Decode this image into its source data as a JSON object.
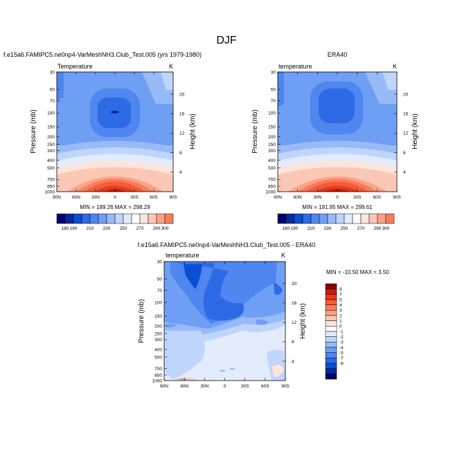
{
  "page_title": "DJF",
  "colors": {
    "blues": [
      "#03006d",
      "#022b9c",
      "#0a4fd3",
      "#2e6ae6",
      "#4f86ef",
      "#6f9ff4",
      "#98bbf8",
      "#bfd5fb",
      "#e2ecfd"
    ],
    "neutral": "#ffffff",
    "reds": [
      "#fde5de",
      "#fcc8b6",
      "#fba286",
      "#f97d5a",
      "#f65a36",
      "#e8391a",
      "#c81b0e",
      "#8d0000"
    ]
  },
  "chart_data": [
    {
      "type": "heatmap",
      "subtype": "latitude-pressure contour",
      "title": "f.e15a6.FAMIPC5.ne0np4-VarMeshNH3.Club_Test.005 (yrs 1979-1980)",
      "left_label": "Temperature",
      "units": "K",
      "stats": "MIN = 189.26   MAX = 298.29",
      "min": 189.26,
      "max": 298.29,
      "xlabel": "",
      "ylabel": "Pressure (mb)",
      "ylabel_right": "Height (km)",
      "x_ticks": [
        "90N",
        "60N",
        "30N",
        "0",
        "30S",
        "60S",
        "90S"
      ],
      "x_values": [
        90,
        60,
        30,
        0,
        -30,
        -60,
        -90
      ],
      "y_ticks": [
        "30",
        "50",
        "70",
        "100",
        "150",
        "200",
        "250",
        "300",
        "400",
        "500",
        "700",
        "850",
        "1000"
      ],
      "y_values": [
        30,
        50,
        70,
        100,
        150,
        200,
        250,
        300,
        400,
        500,
        700,
        850,
        1000
      ],
      "height_ticks": [
        "20",
        "16",
        "12",
        "8",
        "4"
      ],
      "height_values": [
        20,
        16,
        12,
        8,
        4
      ],
      "levels": [
        180,
        190,
        200,
        210,
        220,
        230,
        240,
        250,
        260,
        270,
        280,
        290,
        300
      ],
      "colorbar_labels": [
        "180",
        "190",
        "210",
        "230",
        "250",
        "270",
        "290",
        "300"
      ],
      "colorbar_label_positions": [
        0,
        1,
        3,
        5,
        7,
        9,
        11,
        12
      ]
    },
    {
      "type": "heatmap",
      "subtype": "latitude-pressure contour",
      "title": "ERA40",
      "left_label": "temperature",
      "units": "K",
      "stats": "MIN = 191.95   MAX = 299.61",
      "min": 191.95,
      "max": 299.61,
      "xlabel": "",
      "ylabel": "Pressure (mb)",
      "ylabel_right": "Height (km)",
      "x_ticks": [
        "90N",
        "60N",
        "30N",
        "0",
        "30S",
        "60S",
        "90S"
      ],
      "x_values": [
        90,
        60,
        30,
        0,
        -30,
        -60,
        -90
      ],
      "y_ticks": [
        "30",
        "50",
        "70",
        "100",
        "150",
        "200",
        "250",
        "300",
        "400",
        "500",
        "700",
        "850",
        "1000"
      ],
      "y_values": [
        30,
        50,
        70,
        100,
        150,
        200,
        250,
        300,
        400,
        500,
        700,
        850,
        1000
      ],
      "height_ticks": [
        "20",
        "16",
        "12",
        "8",
        "4"
      ],
      "height_values": [
        20,
        16,
        12,
        8,
        4
      ],
      "levels": [
        180,
        190,
        200,
        210,
        220,
        230,
        240,
        250,
        260,
        270,
        280,
        290,
        300
      ],
      "colorbar_labels": [
        "180",
        "190",
        "210",
        "230",
        "250",
        "270",
        "290",
        "300"
      ],
      "colorbar_label_positions": [
        0,
        1,
        3,
        5,
        7,
        9,
        11,
        12
      ]
    },
    {
      "type": "heatmap",
      "subtype": "latitude-pressure difference contour",
      "title": "f.e15a6.FAMIPC5.ne0np4-VarMeshNH3.Club_Test.005 - ERA40",
      "left_label": "temperature",
      "units": "K",
      "stats": "MIN = -10.50   MAX =   3.50",
      "min": -10.5,
      "max": 3.5,
      "xlabel": "",
      "ylabel": "Pressure (mb)",
      "ylabel_right": "Height (km)",
      "x_ticks": [
        "90N",
        "60N",
        "30N",
        "0",
        "30S",
        "60S",
        "90S"
      ],
      "x_values": [
        90,
        60,
        30,
        0,
        -30,
        -60,
        -90
      ],
      "y_ticks": [
        "30",
        "50",
        "70",
        "100",
        "150",
        "200",
        "250",
        "300",
        "400",
        "500",
        "700",
        "850",
        "1000"
      ],
      "y_values": [
        30,
        50,
        70,
        100,
        150,
        200,
        250,
        300,
        400,
        500,
        700,
        850,
        1000
      ],
      "height_ticks": [
        "20",
        "16",
        "12",
        "8",
        "4"
      ],
      "height_values": [
        20,
        16,
        12,
        8,
        4
      ],
      "colorbar_labels": [
        "9",
        "7",
        "5",
        "4",
        "3",
        "2",
        "1",
        "0",
        "-1",
        "-2",
        "-3",
        "-4",
        "-5",
        "-7",
        "-9"
      ],
      "colorbar_values": [
        9,
        7,
        5,
        4,
        3,
        2,
        1,
        0,
        -1,
        -2,
        -3,
        -4,
        -5,
        -7,
        -9
      ]
    }
  ]
}
